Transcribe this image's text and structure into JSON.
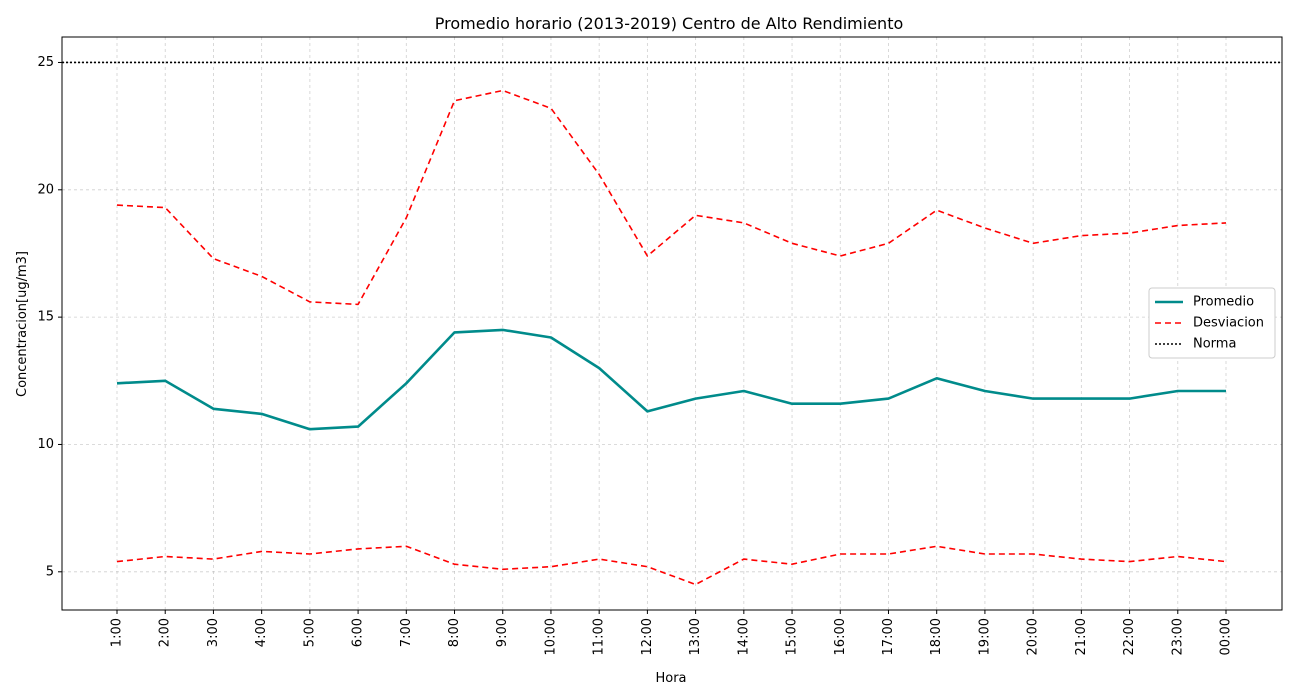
{
  "chart_data": {
    "type": "line",
    "title": "Promedio horario (2013-2019) Centro de Alto Rendimiento",
    "xlabel": "Hora",
    "ylabel": "Concentracion[ug/m3]",
    "categories": [
      "1:00",
      "2:00",
      "3:00",
      "4:00",
      "5:00",
      "6:00",
      "7:00",
      "8:00",
      "9:00",
      "10:00",
      "11:00",
      "12:00",
      "13:00",
      "14:00",
      "15:00",
      "16:00",
      "17:00",
      "18:00",
      "19:00",
      "20:00",
      "21:00",
      "22:00",
      "23:00",
      "00:00"
    ],
    "yticks": [
      5,
      10,
      15,
      20,
      25
    ],
    "ylim": [
      3.5,
      26.0
    ],
    "grid": true,
    "legend_position": "center-right",
    "series": [
      {
        "name": "Promedio",
        "style": "solid",
        "color": "#008b8b",
        "values": [
          12.4,
          12.5,
          11.4,
          11.2,
          10.6,
          10.7,
          12.4,
          14.4,
          14.5,
          14.2,
          13.0,
          11.3,
          11.8,
          12.1,
          11.6,
          11.6,
          11.8,
          12.6,
          12.1,
          11.8,
          11.8,
          11.8,
          12.1,
          12.1
        ]
      },
      {
        "name": "Desviacion",
        "style": "dashed",
        "color": "#ff0000",
        "values": [
          19.4,
          19.3,
          17.3,
          16.6,
          15.6,
          15.5,
          18.9,
          23.5,
          23.9,
          23.2,
          20.6,
          17.4,
          19.0,
          18.7,
          17.9,
          17.4,
          17.9,
          19.2,
          18.5,
          17.9,
          18.2,
          18.3,
          18.6,
          18.7
        ]
      },
      {
        "name": "",
        "style": "dashed",
        "color": "#ff0000",
        "values": [
          5.4,
          5.6,
          5.5,
          5.8,
          5.7,
          5.9,
          6.0,
          5.3,
          5.1,
          5.2,
          5.5,
          5.2,
          4.5,
          5.5,
          5.3,
          5.7,
          5.7,
          6.0,
          5.7,
          5.7,
          5.5,
          5.4,
          5.6,
          5.4
        ]
      }
    ],
    "reference_line": {
      "name": "Norma",
      "value": 25,
      "style": "dotted",
      "color": "#000000"
    }
  }
}
